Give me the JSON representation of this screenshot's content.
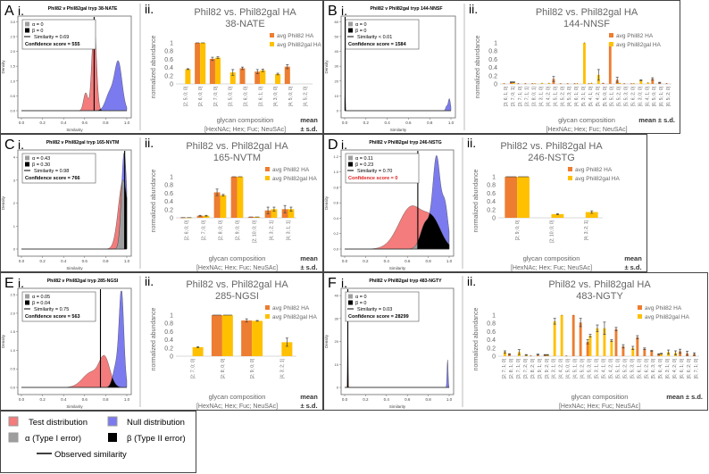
{
  "figure_legend": {
    "test": "Test distribution",
    "null": "Null distribution",
    "alpha": "α (Type I error)",
    "beta": "β (Type II error)",
    "observed": "Observed similarity"
  },
  "colors": {
    "test": "#f47c7c",
    "null": "#7b7bef",
    "alpha": "#9e9e9e",
    "beta": "#000000",
    "phil82": "#ed7d31",
    "phil82gal": "#ffc000",
    "red_text": "#e02020"
  },
  "chart_data": [
    {
      "panel": "A",
      "sub": "i.",
      "type": "area",
      "title": "Phil82 v Phil82gal tryp 38-NATE",
      "xlabel": "Similarity",
      "ylabel": "Density",
      "xlim": [
        0,
        1
      ],
      "xticks": [
        "0.0",
        "0.2",
        "0.4",
        "0.6",
        "0.8",
        "1.0"
      ],
      "ylim": [
        0,
        3.1
      ],
      "yticks": [
        "0.0",
        "0.5",
        "1.0",
        "1.5",
        "2.0",
        "2.5",
        "3.0"
      ],
      "ytick_values": [
        0,
        0.5,
        1,
        1.5,
        2,
        2.5,
        3
      ],
      "alpha": "α = 0",
      "beta": "β = 0",
      "similarity": "Similarity = 0.69",
      "similarity_value": 0.69,
      "confidence": "Confidence score = 555",
      "confidence_red": false,
      "test_components": [
        {
          "mu": 0.69,
          "sd": 0.022,
          "h": 2.9
        },
        {
          "mu": 0.61,
          "sd": 0.02,
          "h": 0.6
        }
      ],
      "null_components": [
        {
          "mu": 0.92,
          "sd": 0.035,
          "h": 1.6
        },
        {
          "mu": 0.84,
          "sd": 0.04,
          "h": 0.6
        }
      ]
    },
    {
      "panel": "A",
      "sub": "ii.",
      "type": "bar",
      "title": "Phil82 vs. Phil82gal HA",
      "site": "38-NATE",
      "ylabel": "normalized abundance",
      "xlabel": "glycan composition",
      "xlabel2": "[HexNAc; Hex; Fuc; NeuSAc]",
      "mean": "mean",
      "sd": "± s.d.",
      "ylim": [
        0,
        1
      ],
      "yticks": [
        "0",
        "0.2",
        "0.4",
        "0.6",
        "0.8",
        "1"
      ],
      "legend": [
        "avg Phil82 HA",
        "avg Phil82gal HA"
      ],
      "categories": [
        "[2; 5; 0; 0]",
        "[2; 6; 0; 0]",
        "[2; 7; 0; 0]",
        "[3; 5; 0; 0]",
        "[3; 6; 0; 0]",
        "[3; 6; 1; 0]",
        "[4; 3; 0; 0]",
        "[4; 5; 0; 0]",
        "[4; 5; 2; 0]"
      ],
      "series": [
        {
          "name": "avg Phil82 HA",
          "values": [
            null,
            1,
            0.61,
            null,
            0.38,
            0.3,
            null,
            0.42,
            null
          ],
          "errors": [
            null,
            0,
            0.04,
            null,
            0.03,
            0.05,
            null,
            0.05,
            null
          ]
        },
        {
          "name": "avg Phil82gal HA",
          "values": [
            0.36,
            1,
            0.64,
            0.28,
            null,
            0.33,
            0.24,
            null,
            null
          ],
          "errors": [
            0.01,
            0,
            0.02,
            0.07,
            null,
            0.03,
            0.02,
            null,
            null
          ]
        }
      ]
    },
    {
      "panel": "B",
      "sub": "i.",
      "type": "area",
      "title": "Phil82 v Phil82gal tryp 144-NNSF",
      "xlabel": "Similarity",
      "ylabel": "Density",
      "xlim": [
        0,
        1
      ],
      "xticks": [
        "0.0",
        "0.2",
        "0.4",
        "0.6",
        "0.8",
        "1.0"
      ],
      "ylim": [
        0,
        62
      ],
      "yticks": [
        "0",
        "10",
        "20",
        "30",
        "40",
        "50",
        "60"
      ],
      "ytick_values": [
        0,
        10,
        20,
        30,
        40,
        50,
        60
      ],
      "alpha": "α = 0",
      "beta": "β = 0",
      "similarity": "Similarity < 0.01",
      "similarity_value": 0.004,
      "confidence": "Confidence score = 1584",
      "confidence_red": false,
      "test_components": [
        {
          "mu": 0.004,
          "sd": 0.003,
          "h": 14
        }
      ],
      "null_components": [
        {
          "mu": 0.985,
          "sd": 0.01,
          "h": 8
        },
        {
          "mu": 0.96,
          "sd": 0.01,
          "h": 3
        }
      ]
    },
    {
      "panel": "B",
      "sub": "ii.",
      "type": "bar",
      "title": "Phil82 vs. Phil82gal HA",
      "site": "144-NNSF",
      "ylabel": "normalized abundance",
      "xlabel": "glycan composition",
      "xlabel2": "[HexNAc; Hex; Fuc; NeuSAc]",
      "mean": "mean ± s.d.",
      "sd": "",
      "ylim": [
        0,
        1
      ],
      "yticks": [
        "0",
        "0.2",
        "0.4",
        "0.6",
        "0.8",
        "1"
      ],
      "legend": [
        "avg Phil82 HA",
        "avg Phil82gal HA"
      ],
      "categories": [
        "[3; 6; 1; 0]",
        "[3; 7; 0; 1]",
        "[3; 7; 1; 0]",
        "[3; 7; 1; 1]",
        "[3; 8; 0; 1]",
        "[4; 3; 1; 0]",
        "[4; 4; 2; 0]",
        "[4; 5; 1; 0]",
        "[4; 5; 2; 0]",
        "[4; 5; 3; 0]",
        "[4; 6; 1; 0]",
        "[5; 3; 1; 0]",
        "[5; 4; 1; 0]",
        "[5; 4; 2; 0]",
        "[5; 5; 0; 0]",
        "[5; 5; 1; 0]",
        "[5; 5; 2; 0]",
        "[5; 5; 3; 0]",
        "[5; 6; 2; 0]",
        "[6; 3; 0; 0]",
        "[6; 4; 1; 0]",
        "[6; 5; 0; 0]",
        "[6; 5; 1; 0]",
        "[6; 5; 2; 0]"
      ],
      "series": [
        {
          "name": "avg Phil82 HA",
          "values": [
            0.01,
            0.04,
            0.01,
            0.01,
            0.01,
            null,
            null,
            0.12,
            0.01,
            0.01,
            0.01,
            null,
            0.01,
            null,
            0.02,
            1,
            0.1,
            0.01,
            0.01,
            null,
            null,
            0.12,
            0.03,
            0.01
          ],
          "errors": [
            0,
            0.01,
            0,
            0,
            0,
            null,
            null,
            0.06,
            0,
            0,
            0,
            null,
            0,
            null,
            0,
            0,
            0.06,
            0,
            0,
            null,
            null,
            0.03,
            0.01,
            0
          ]
        },
        {
          "name": "avg Phil82gal HA",
          "values": [
            null,
            0.04,
            null,
            null,
            0.01,
            0.02,
            0.02,
            null,
            null,
            null,
            0.01,
            1,
            0.02,
            0.22,
            null,
            null,
            0.02,
            null,
            0.01,
            0.09,
            0.03,
            null,
            null,
            null
          ],
          "errors": [
            null,
            0.01,
            null,
            null,
            0,
            0,
            0,
            null,
            null,
            null,
            0,
            0,
            0,
            0.13,
            null,
            null,
            0,
            null,
            0,
            0.01,
            0,
            null,
            null,
            null
          ]
        }
      ]
    },
    {
      "panel": "C",
      "sub": "i.",
      "type": "area",
      "title": "Phil82 v Phil82gal tryp 165-NVTM",
      "xlabel": "Similarity",
      "ylabel": "Density",
      "xlim": [
        0,
        1
      ],
      "xticks": [
        "0.0",
        "0.2",
        "0.4",
        "0.6",
        "0.8",
        "1.0"
      ],
      "ylim": [
        0,
        4.2
      ],
      "yticks": [
        "0",
        "1",
        "2",
        "3",
        "4"
      ],
      "ytick_values": [
        0,
        1,
        2,
        3,
        4
      ],
      "alpha": "α = 0.43",
      "beta": "β = 0.30",
      "similarity": "Similarity = 0.98",
      "similarity_value": 0.98,
      "confidence": "Confidence score = 766",
      "confidence_red": false,
      "test_components": [
        {
          "mu": 0.965,
          "sd": 0.045,
          "h": 3.0
        }
      ],
      "null_components": [
        {
          "mu": 0.975,
          "sd": 0.025,
          "h": 4.2
        }
      ]
    },
    {
      "panel": "C",
      "sub": "ii.",
      "type": "bar",
      "title": "Phil82 vs. Phil82gal HA",
      "site": "165-NVTM",
      "ylabel": "normalized abundance",
      "xlabel": "glycan composition",
      "xlabel2": "[HexNAc; Hex; Fuc; NeuSAc]",
      "mean": "mean",
      "sd": "± s.d.",
      "ylim": [
        0,
        1
      ],
      "yticks": [
        "0",
        "0.2",
        "0.4",
        "0.6",
        "0.8",
        "1"
      ],
      "legend": [
        "avg Phil82 HA",
        "avg Phil82gal HA"
      ],
      "categories": [
        "[2; 6; 0; 0]",
        "[2; 7; 0; 0]",
        "[2; 8; 0; 0]",
        "[2; 9; 0; 0]",
        "[2; 10; 0; 0]",
        "[4; 3; 2; 1]",
        "[4; 3; 1; 1]"
      ],
      "series": [
        {
          "name": "avg Phil82 HA",
          "values": [
            0.005,
            0.05,
            0.62,
            1,
            0.02,
            0.18,
            0.21
          ],
          "errors": [
            0,
            0.01,
            0.08,
            0,
            0,
            0.08,
            0.09
          ]
        },
        {
          "name": "avg Phil82gal HA",
          "values": [
            0.005,
            0.05,
            0.55,
            1,
            0.02,
            0.21,
            0.21
          ],
          "errors": [
            0,
            0.01,
            0.02,
            0,
            0,
            0.05,
            0.05
          ]
        }
      ]
    },
    {
      "panel": "D",
      "sub": "i.",
      "type": "area",
      "title": "Phil82 v Phil82gal tryp 246-NSTG",
      "xlabel": "Similarity",
      "ylabel": "Density",
      "xlim": [
        0,
        1
      ],
      "xticks": [
        "0.0",
        "0.2",
        "0.4",
        "0.6",
        "0.8",
        "1.0"
      ],
      "ylim": [
        0,
        1.25
      ],
      "yticks": [
        "0.0",
        "0.2",
        "0.4",
        "0.6",
        "0.8",
        "1.0",
        "1.2"
      ],
      "ytick_values": [
        0,
        0.2,
        0.4,
        0.6,
        0.8,
        1,
        1.2
      ],
      "alpha": "α = 0.11",
      "beta": "β = 0.23",
      "similarity": "Similarity = 0.70",
      "similarity_value": 0.7,
      "confidence": "Confidence score = 0",
      "confidence_red": true,
      "test_components": [
        {
          "mu": 0.64,
          "sd": 0.12,
          "h": 0.55
        },
        {
          "mu": 0.85,
          "sd": 0.08,
          "h": 0.3
        }
      ],
      "null_components": [
        {
          "mu": 0.88,
          "sd": 0.035,
          "h": 1.15
        },
        {
          "mu": 0.96,
          "sd": 0.03,
          "h": 0.55
        },
        {
          "mu": 0.78,
          "sd": 0.05,
          "h": 0.35
        }
      ]
    },
    {
      "panel": "D",
      "sub": "ii.",
      "type": "bar",
      "title": "Phil82 vs. Phil82gal HA",
      "site": "246-NSTG",
      "ylabel": "normalized abundance",
      "xlabel": "glycan composition",
      "xlabel2": "[HexNAc; Hex; Fuc; NeuSAc]",
      "mean": "mean",
      "sd": "± s.d.",
      "ylim": [
        0,
        1
      ],
      "yticks": [
        "0",
        "0.2",
        "0.4",
        "0.6",
        "0.8",
        "1"
      ],
      "legend": [
        "avg Phil82 HA",
        "avg Phil82gal HA"
      ],
      "categories": [
        "[2; 9; 0; 0]",
        "[2; 10; 0; 0]",
        "[4; 3; 2; 1]"
      ],
      "series": [
        {
          "name": "avg Phil82 HA",
          "values": [
            1,
            null,
            null
          ],
          "errors": [
            0,
            null,
            null
          ]
        },
        {
          "name": "avg Phil82gal HA",
          "values": [
            1,
            0.09,
            0.14
          ],
          "errors": [
            0,
            0.01,
            0.03
          ]
        }
      ]
    },
    {
      "panel": "E",
      "sub": "i.",
      "type": "area",
      "title": "Phil82 v Phil82gal tryp 285-NGSI",
      "xlabel": "Similarity",
      "ylabel": "Density",
      "xlim": [
        0,
        1
      ],
      "xticks": [
        "0.0",
        "0.2",
        "0.4",
        "0.6",
        "0.8",
        "1.0"
      ],
      "ylim": [
        0,
        2.6
      ],
      "yticks": [
        "0.0",
        "0.5",
        "1.0",
        "1.5",
        "2.0",
        "2.5"
      ],
      "ytick_values": [
        0,
        0.5,
        1,
        1.5,
        2,
        2.5
      ],
      "alpha": "α = 0.05",
      "beta": "β = 0.04",
      "similarity": "Similarity = 0.75",
      "similarity_value": 0.75,
      "confidence": "Confidence score = 563",
      "confidence_red": false,
      "test_components": [
        {
          "mu": 0.79,
          "sd": 0.05,
          "h": 0.75
        },
        {
          "mu": 0.66,
          "sd": 0.08,
          "h": 0.4
        }
      ],
      "null_components": [
        {
          "mu": 0.95,
          "sd": 0.022,
          "h": 2.5
        },
        {
          "mu": 0.9,
          "sd": 0.03,
          "h": 0.6
        }
      ]
    },
    {
      "panel": "E",
      "sub": "ii.",
      "type": "bar",
      "title": "Phil82 vs. Phil82gal HA",
      "site": "285-NGSI",
      "ylabel": "normalized abundance",
      "xlabel": "glycan composition",
      "xlabel2": "[HexNAc; Hex; Fuc; NeuSAc]",
      "mean": "mean",
      "sd": "± s.d.",
      "ylim": [
        0,
        1
      ],
      "yticks": [
        "0",
        "0.2",
        "0.4",
        "0.6",
        "0.8",
        "1"
      ],
      "legend": [
        "avg Phil82 HA",
        "avg Phil82gal HA"
      ],
      "categories": [
        "[2; 7; 0; 0]",
        "[2; 8; 0; 0]",
        "[2; 9; 0; 0]",
        "[4; 3; 2; 1]"
      ],
      "series": [
        {
          "name": "avg Phil82 HA",
          "values": [
            null,
            1,
            0.87,
            null
          ],
          "errors": [
            null,
            0,
            0.04,
            null
          ]
        },
        {
          "name": "avg Phil82gal HA",
          "values": [
            0.22,
            1,
            0.86,
            0.34
          ],
          "errors": [
            0.01,
            0,
            0.01,
            0.1
          ]
        }
      ]
    },
    {
      "panel": "F",
      "sub": "i.",
      "type": "area",
      "title": "Phil82 v Phil82gal tryp 483-NGTY",
      "xlabel": "Similarity",
      "ylabel": "Density",
      "xlim": [
        0,
        1
      ],
      "xticks": [
        "0.0",
        "0.2",
        "0.4",
        "0.6",
        "0.8",
        "1.0"
      ],
      "ylim": [
        0,
        42
      ],
      "yticks": [
        "0",
        "10",
        "20",
        "30",
        "40"
      ],
      "ytick_values": [
        0,
        10,
        20,
        30,
        40
      ],
      "alpha": "α = 0",
      "beta": "β = 0",
      "similarity": "Similarity = 0.03",
      "similarity_value": 0.03,
      "confidence": "Confidence score = 28299",
      "confidence_red": false,
      "test_components": [
        {
          "mu": 0.03,
          "sd": 0.003,
          "h": 25
        }
      ],
      "null_components": [
        {
          "mu": 0.985,
          "sd": 0.005,
          "h": 12
        }
      ]
    },
    {
      "panel": "F",
      "sub": "ii.",
      "type": "bar",
      "title": "Phil82 vs. Phil82gal HA",
      "site": "483-NGTY",
      "ylabel": "normalized abundance",
      "xlabel": "glycan composition",
      "xlabel2": "[HexNAc; Hex; Fuc; NeuSAc]",
      "mean": "mean ± s.d.",
      "sd": "",
      "ylim": [
        0,
        1
      ],
      "yticks": [
        "0",
        "0.2",
        "0.4",
        "0.6",
        "0.8",
        "1"
      ],
      "legend": [
        "avg Phil82 HA",
        "avg Phil82gal HA"
      ],
      "categories": [
        "[2; 7; 1; 0]",
        "[2; 8; 1; 0]",
        "[3; 7; 1; 0]",
        "[3; 7; 2; 0]",
        "[3; 8; 2; 0]",
        "[3; 9; 1; 0]",
        "[3; 9; 2; 0]",
        "[4; 3; 1; 0]",
        "[4; 4; 2; 0]",
        "[4; 5; 0; 0]",
        "[4; 5; 1; 0]",
        "[4; 5; 2; 0]",
        "[4; 5; 3; 0]",
        "[5; 3; 1; 0]",
        "[5; 4; 1; 0]",
        "[5; 4; 2; 0]",
        "[5; 5; 1; 0]",
        "[5; 5; 2; 0]",
        "[5; 5; 3; 0]",
        "[5; 6; 1; 0]",
        "[5; 6; 2; 0]",
        "[5; 6; 3; 0]",
        "[5; 6; 4; 0]",
        "[6; 3; 1; 0]",
        "[6; 4; 2; 0]",
        "[6; 6; 1; 0]",
        "[6; 6; 2; 0]",
        "[6; 7; 1; 0]"
      ],
      "series": [
        {
          "name": "avg Phil82 HA",
          "values": [
            null,
            0.05,
            null,
            null,
            0.01,
            0.04,
            0.03,
            null,
            null,
            0.01,
            1,
            0.82,
            0.35,
            null,
            null,
            null,
            0.66,
            0.24,
            null,
            0.46,
            0.18,
            0.13,
            0.05,
            null,
            null,
            0.12,
            0.07,
            0.05
          ],
          "errors": [
            null,
            0.01,
            null,
            null,
            0,
            0.01,
            0.01,
            null,
            null,
            0,
            0,
            0.1,
            0.05,
            null,
            null,
            null,
            0.04,
            0.04,
            null,
            0.04,
            0.02,
            0.01,
            0.01,
            null,
            null,
            0.05,
            0.05,
            0.03
          ]
        },
        {
          "name": "avg Phil82gal HA",
          "values": [
            0.1,
            null,
            0.1,
            0.03,
            null,
            null,
            0.03,
            0.85,
            1,
            null,
            null,
            null,
            0.5,
            0.68,
            0.68,
            0.38,
            null,
            null,
            0.2,
            null,
            null,
            null,
            0.06,
            0.1,
            0.08,
            null,
            null,
            null
          ],
          "errors": [
            0.03,
            null,
            0.06,
            0.01,
            null,
            null,
            0.01,
            0.07,
            0,
            null,
            null,
            null,
            0.03,
            0.08,
            0.15,
            0.02,
            null,
            null,
            0.04,
            null,
            null,
            null,
            0.01,
            0.05,
            0.05,
            null,
            null,
            null
          ]
        }
      ]
    }
  ]
}
